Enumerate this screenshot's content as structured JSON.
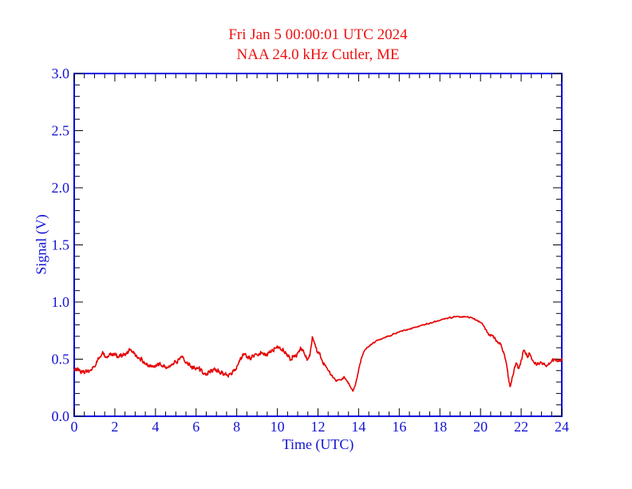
{
  "chart_data": {
    "type": "line",
    "title": "Fri Jan 5 00:00:01 UTC 2024",
    "subtitle": "NAA 24.0 kHz Cutler, ME",
    "xlabel": "Time (UTC)",
    "ylabel": "Signal (V)",
    "xlim": [
      0,
      24
    ],
    "ylim": [
      0.0,
      3.0
    ],
    "grid": false,
    "x_major_tick_step": 2,
    "x_minor_tick_step": 0.5,
    "y_major_tick_step": 0.5,
    "y_minor_tick_step": 0.1,
    "x_tick_labels": [
      "0",
      "2",
      "4",
      "6",
      "8",
      "10",
      "12",
      "14",
      "16",
      "18",
      "20",
      "22",
      "24"
    ],
    "y_tick_labels": [
      "0.0",
      "0.5",
      "1.0",
      "1.5",
      "2.0",
      "2.5",
      "3.0"
    ],
    "colors": {
      "title": "#ee1111",
      "axis_frame": "#0000dd",
      "tick_marks": "#000000",
      "axis_text": "#1313d6",
      "trace": "#e60000",
      "background": "#ffffff"
    },
    "series": [
      {
        "name": "NAA 24.0 kHz signal",
        "points": [
          [
            0,
            0.42
          ],
          [
            0.2,
            0.4
          ],
          [
            0.5,
            0.38
          ],
          [
            0.8,
            0.4
          ],
          [
            1.0,
            0.44
          ],
          [
            1.2,
            0.52
          ],
          [
            1.4,
            0.55
          ],
          [
            1.6,
            0.52
          ],
          [
            1.9,
            0.54
          ],
          [
            2.2,
            0.52
          ],
          [
            2.5,
            0.55
          ],
          [
            2.75,
            0.58
          ],
          [
            3.0,
            0.54
          ],
          [
            3.3,
            0.5
          ],
          [
            3.6,
            0.45
          ],
          [
            3.9,
            0.44
          ],
          [
            4.2,
            0.46
          ],
          [
            4.5,
            0.43
          ],
          [
            4.8,
            0.45
          ],
          [
            5.0,
            0.47
          ],
          [
            5.3,
            0.52
          ],
          [
            5.6,
            0.46
          ],
          [
            5.9,
            0.42
          ],
          [
            6.2,
            0.41
          ],
          [
            6.5,
            0.36
          ],
          [
            6.8,
            0.4
          ],
          [
            7.0,
            0.41
          ],
          [
            7.3,
            0.37
          ],
          [
            7.6,
            0.36
          ],
          [
            7.9,
            0.4
          ],
          [
            8.1,
            0.46
          ],
          [
            8.3,
            0.54
          ],
          [
            8.6,
            0.51
          ],
          [
            8.9,
            0.53
          ],
          [
            9.2,
            0.55
          ],
          [
            9.5,
            0.54
          ],
          [
            9.8,
            0.58
          ],
          [
            10.0,
            0.6
          ],
          [
            10.2,
            0.59
          ],
          [
            10.45,
            0.54
          ],
          [
            10.6,
            0.51
          ],
          [
            10.85,
            0.52
          ],
          [
            11.0,
            0.55
          ],
          [
            11.15,
            0.6
          ],
          [
            11.3,
            0.56
          ],
          [
            11.45,
            0.5
          ],
          [
            11.6,
            0.53
          ],
          [
            11.72,
            0.69
          ],
          [
            11.8,
            0.65
          ],
          [
            11.95,
            0.57
          ],
          [
            12.1,
            0.53
          ],
          [
            12.3,
            0.46
          ],
          [
            12.5,
            0.4
          ],
          [
            12.7,
            0.35
          ],
          [
            12.9,
            0.31
          ],
          [
            13.1,
            0.32
          ],
          [
            13.3,
            0.34
          ],
          [
            13.45,
            0.3
          ],
          [
            13.6,
            0.26
          ],
          [
            13.72,
            0.22
          ],
          [
            13.85,
            0.28
          ],
          [
            14.0,
            0.4
          ],
          [
            14.15,
            0.52
          ],
          [
            14.3,
            0.58
          ],
          [
            14.5,
            0.61
          ],
          [
            14.7,
            0.64
          ],
          [
            15.0,
            0.67
          ],
          [
            15.3,
            0.69
          ],
          [
            15.6,
            0.71
          ],
          [
            16.0,
            0.74
          ],
          [
            16.4,
            0.76
          ],
          [
            16.8,
            0.78
          ],
          [
            17.2,
            0.8
          ],
          [
            17.6,
            0.82
          ],
          [
            18.0,
            0.84
          ],
          [
            18.4,
            0.86
          ],
          [
            18.8,
            0.87
          ],
          [
            19.3,
            0.87
          ],
          [
            19.6,
            0.86
          ],
          [
            19.9,
            0.83
          ],
          [
            20.1,
            0.81
          ],
          [
            20.25,
            0.76
          ],
          [
            20.4,
            0.72
          ],
          [
            20.6,
            0.7
          ],
          [
            20.8,
            0.66
          ],
          [
            21.0,
            0.62
          ],
          [
            21.15,
            0.56
          ],
          [
            21.3,
            0.43
          ],
          [
            21.45,
            0.25
          ],
          [
            21.6,
            0.37
          ],
          [
            21.75,
            0.46
          ],
          [
            21.9,
            0.41
          ],
          [
            22.05,
            0.52
          ],
          [
            22.15,
            0.58
          ],
          [
            22.3,
            0.52
          ],
          [
            22.45,
            0.55
          ],
          [
            22.6,
            0.48
          ],
          [
            22.75,
            0.45
          ],
          [
            22.9,
            0.46
          ],
          [
            23.1,
            0.47
          ],
          [
            23.25,
            0.44
          ],
          [
            23.4,
            0.46
          ],
          [
            23.6,
            0.5
          ],
          [
            23.8,
            0.48
          ],
          [
            24,
            0.5
          ]
        ]
      }
    ],
    "noise_texture": {
      "sample_step": 0.02,
      "seed": 7,
      "regions": [
        {
          "t_end": 12.3,
          "amplitude": 0.02
        },
        {
          "t_end": 14.2,
          "amplitude": 0.011
        },
        {
          "t_end": 20.2,
          "amplitude": 0.006
        },
        {
          "t_end": 24.0,
          "amplitude": 0.016
        }
      ]
    }
  }
}
